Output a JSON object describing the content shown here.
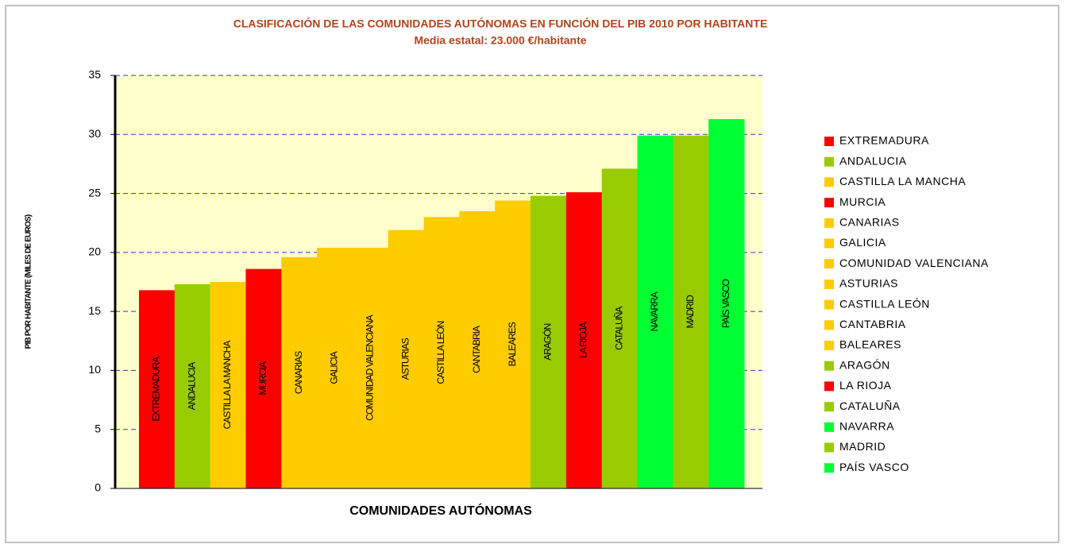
{
  "chart_data": {
    "type": "bar",
    "title": "CLASIFICACIÓN DE LAS COMUNIDADES AUTÓNOMAS EN FUNCIÓN DEL PIB 2010 POR HABITANTE",
    "subtitle": "Media estatal: 23.000 €/habitante",
    "x_label": "COMUNIDADES AUTÓNOMAS",
    "y_label": "PIB POR HABITANTE (MILES DE EUROS)",
    "categories": [
      "EXTREMADURA",
      "ANDALUCIA",
      "CASTILLA LA MANCHA",
      "MURCIA",
      "CANARIAS",
      "GALICIA",
      "COMUNIDAD VALENCIANA",
      "ASTURIAS",
      "CASTILLA LEÓN",
      "CANTABRIA",
      "BALEARES",
      "ARAGÓN",
      "LA RIOJA",
      "CATALUÑA",
      "NAVARRA",
      "MADRID",
      "PAÍS VASCO"
    ],
    "values": [
      16.8,
      17.3,
      17.5,
      18.6,
      19.6,
      20.4,
      20.4,
      21.9,
      23.0,
      23.5,
      24.4,
      24.8,
      25.1,
      27.1,
      29.9,
      29.9,
      31.3
    ],
    "colors": [
      "#ff0000",
      "#99cc00",
      "#ffcc00",
      "#ff0000",
      "#ffcc00",
      "#ffcc00",
      "#ffcc00",
      "#ffcc00",
      "#ffcc00",
      "#ffcc00",
      "#ffcc00",
      "#99cc00",
      "#ff0000",
      "#99cc00",
      "#00ff33",
      "#99cc00",
      "#00ff33"
    ],
    "ylim": [
      0,
      35
    ],
    "yticks": [
      0,
      5,
      10,
      15,
      20,
      25,
      30,
      35
    ],
    "grid": true,
    "legend": "right"
  }
}
